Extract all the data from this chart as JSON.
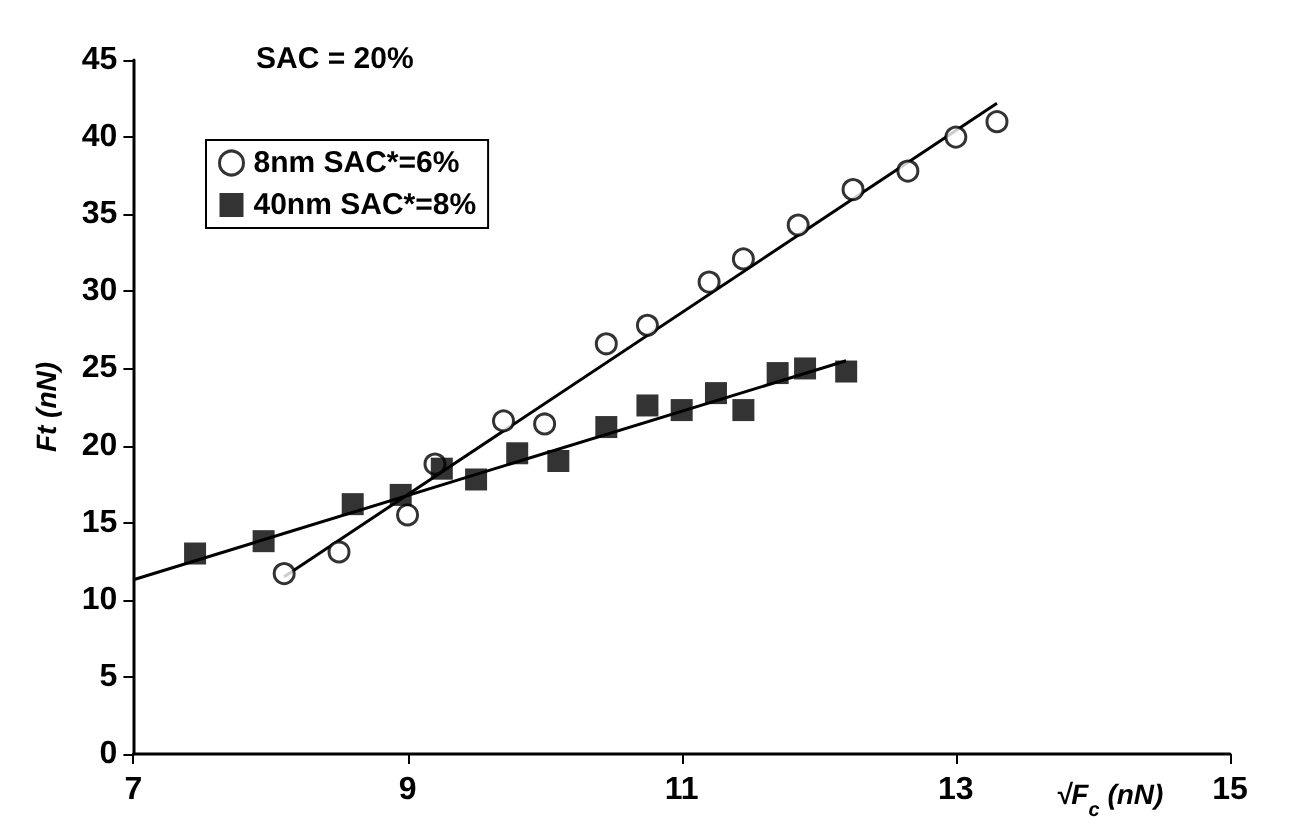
{
  "chart_data": {
    "type": "scatter",
    "xlabel": "√F$_{c}$ (nN)",
    "ylabel": "Ft (nN)",
    "annotations": [
      "SAC = 20%"
    ],
    "xlim": [
      7,
      15
    ],
    "xticks": [
      7,
      9,
      11,
      13,
      15
    ],
    "ylim": [
      0,
      45
    ],
    "yticks": [
      0,
      5,
      10,
      15,
      20,
      25,
      30,
      35,
      40,
      45
    ],
    "grid": false,
    "legend": "top left",
    "series": [
      {
        "name": "8nm SAC*=6%",
        "color": "#000000",
        "marker": "circle",
        "x": [
          8.1,
          8.5,
          9.0,
          9.2,
          9.7,
          10.0,
          10.45,
          10.75,
          11.2,
          11.45,
          11.85,
          12.25,
          12.65,
          13.0,
          13.3
        ],
        "values": [
          11.7,
          13.1,
          15.5,
          18.8,
          21.6,
          21.4,
          26.6,
          27.8,
          30.6,
          32.1,
          34.3,
          36.6,
          37.8,
          40.0,
          41.0
        ]
      },
      {
        "name": "40nm SAC*=8%",
        "color": "#000000",
        "marker": "square",
        "x": [
          7.45,
          7.95,
          8.6,
          8.95,
          9.25,
          9.5,
          9.8,
          10.1,
          10.45,
          10.75,
          11.0,
          11.25,
          11.45,
          11.7,
          11.9,
          12.2
        ],
        "values": [
          13.0,
          13.8,
          16.2,
          16.8,
          18.5,
          17.8,
          19.5,
          19.0,
          21.2,
          22.6,
          22.3,
          23.4,
          22.3,
          24.7,
          25.0,
          24.8
        ]
      },
      {
        "type": "line",
        "color": "#000000",
        "marker": "none",
        "x": [
          8.1,
          13.3
        ],
        "values": [
          11.5,
          42.2
        ]
      },
      {
        "type": "line",
        "color": "#000000",
        "marker": "none",
        "x": [
          7,
          12.2
        ],
        "values": [
          11.3,
          25.5
        ]
      }
    ]
  }
}
